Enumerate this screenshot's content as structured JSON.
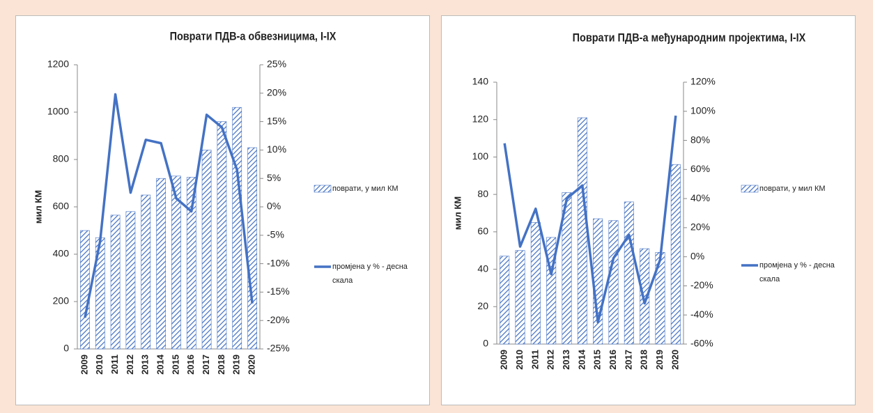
{
  "chart_data": [
    {
      "type": "bar_line",
      "title": "Поврати ПДВ-а обвезницима, I-IX",
      "ylabel": "мил КМ",
      "categories": [
        "2009",
        "2010",
        "2011",
        "2012",
        "2013",
        "2014",
        "2015",
        "2016",
        "2017",
        "2018",
        "2019",
        "2020"
      ],
      "series": [
        {
          "name": "поврати, у мил КМ",
          "color": "#4472c4",
          "type": "bar",
          "values": [
            500,
            470,
            565,
            580,
            650,
            720,
            730,
            725,
            840,
            960,
            1020,
            850
          ]
        },
        {
          "name": "промјена у % - десна скала",
          "color": "#4472c4",
          "type": "line",
          "axis": "y2",
          "values": [
            -19.5,
            -6,
            19.8,
            2.5,
            11.8,
            11.2,
            1.5,
            -0.8,
            16.2,
            14,
            6.5,
            -17
          ]
        }
      ],
      "ylim": [
        0,
        1200
      ],
      "yticks": [
        0,
        200,
        400,
        600,
        800,
        1000,
        1200
      ],
      "y2lim": [
        -25,
        25
      ],
      "y2ticks": [
        {
          "value": -25,
          "label": "-25%"
        },
        {
          "value": -20,
          "label": "-20%"
        },
        {
          "value": -15,
          "label": "-15%"
        },
        {
          "value": -10,
          "label": "-10%"
        },
        {
          "value": -5,
          "label": "-5%"
        },
        {
          "value": 0,
          "label": "0%"
        },
        {
          "value": 5,
          "label": "5%"
        },
        {
          "value": 10,
          "label": "10%"
        },
        {
          "value": 15,
          "label": "15%"
        },
        {
          "value": 20,
          "label": "20%"
        },
        {
          "value": 25,
          "label": "25%"
        }
      ]
    },
    {
      "type": "bar_line",
      "title": "Поврати ПДВ-а међународним пројектима, I-IX",
      "ylabel": "мил КМ",
      "categories": [
        "2009",
        "2010",
        "2011",
        "2012",
        "2013",
        "2014",
        "2015",
        "2016",
        "2017",
        "2018",
        "2019",
        "2020"
      ],
      "series": [
        {
          "name": "поврати, у мил КМ",
          "color": "#4472c4",
          "type": "bar",
          "values": [
            47,
            50,
            65,
            57,
            81,
            121,
            67,
            66,
            76,
            51,
            49,
            96
          ]
        },
        {
          "name": "промјена у % - десна скала",
          "color": "#4472c4",
          "type": "line",
          "axis": "y2",
          "values": [
            78,
            7,
            33,
            -12,
            40,
            49,
            -45,
            -1,
            15,
            -32,
            -2,
            97
          ]
        }
      ],
      "ylim": [
        0,
        140
      ],
      "yticks": [
        0,
        20,
        40,
        60,
        80,
        100,
        120,
        140
      ],
      "y2lim": [
        -60,
        120
      ],
      "y2ticks": [
        {
          "value": -60,
          "label": "-60%"
        },
        {
          "value": -40,
          "label": "-40%"
        },
        {
          "value": -20,
          "label": "-20%"
        },
        {
          "value": 0,
          "label": "0%"
        },
        {
          "value": 20,
          "label": "20%"
        },
        {
          "value": 40,
          "label": "40%"
        },
        {
          "value": 60,
          "label": "60%"
        },
        {
          "value": 80,
          "label": "80%"
        },
        {
          "value": 100,
          "label": "100%"
        },
        {
          "value": 120,
          "label": "120%"
        }
      ]
    }
  ]
}
